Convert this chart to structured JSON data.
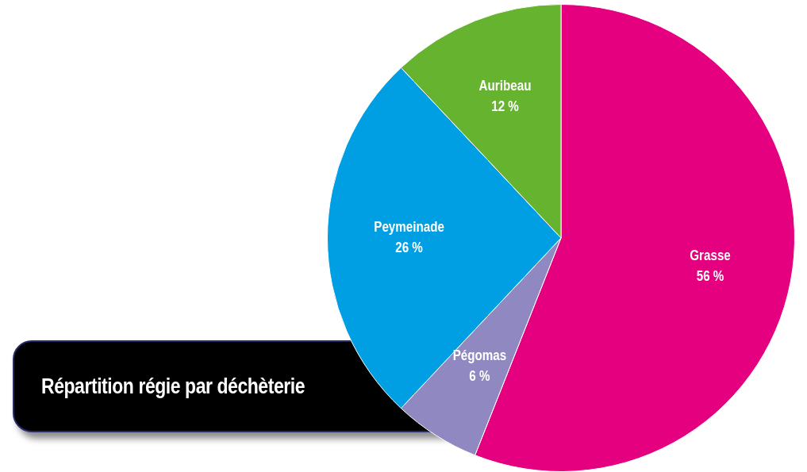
{
  "chart_data": {
    "type": "pie",
    "title": "Répartition régie par déchèterie",
    "categories": [
      "Grasse",
      "Pégomas",
      "Peymeinade",
      "Auribeau"
    ],
    "values": [
      56,
      6,
      26,
      12
    ],
    "value_labels": [
      "56 %",
      "6 %",
      "26 %",
      "12 %"
    ],
    "colors": [
      "#e4007f",
      "#9088c0",
      "#009fe3",
      "#65b32e"
    ],
    "legend": false
  }
}
